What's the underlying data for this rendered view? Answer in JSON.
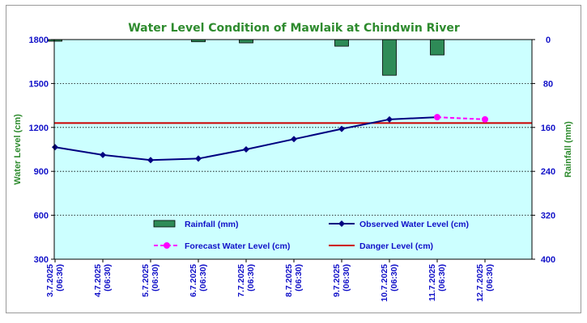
{
  "chart_data": {
    "type": "line",
    "title": "Water Level Condition of Mawlaik at Chindwin River",
    "y_left_label": "Water Level (cm)",
    "y_right_label": "Rainfall (mm)",
    "y_left_range": [
      300,
      1800
    ],
    "y_left_ticks": [
      "300",
      "600",
      "900",
      "1200",
      "1500",
      "1800"
    ],
    "y_right_range": [
      0,
      400
    ],
    "y_right_inverted": true,
    "y_right_ticks": [
      "0",
      "80",
      "160",
      "240",
      "320",
      "400"
    ],
    "grid": true,
    "plot_background": "#ccffff",
    "categories": [
      [
        "3.7.2025",
        "(06:30)"
      ],
      [
        "4.7.2025",
        "(06:30)"
      ],
      [
        "5.7.2025",
        "(06:30)"
      ],
      [
        "6.7.2025",
        "(06:30)"
      ],
      [
        "7.7.2025",
        "(06:30)"
      ],
      [
        "8.7.2025",
        "(06:30)"
      ],
      [
        "9.7.2025",
        "(06:30)"
      ],
      [
        "10.7.2025",
        "(06:30)"
      ],
      [
        "11.7.2025",
        "(06:30)"
      ],
      [
        "12.7.2025",
        "(06:30)"
      ]
    ],
    "series": [
      {
        "name": "Rainfall (mm)",
        "kind": "bar",
        "axis": "right",
        "color": "#2e8b57",
        "values": [
          3,
          0,
          0,
          4,
          6,
          0,
          12,
          65,
          28,
          0
        ]
      },
      {
        "name": "Observed Water Level (cm)",
        "kind": "line",
        "axis": "left",
        "color": "#000080",
        "marker": "diamond",
        "values": [
          1065,
          1012,
          977,
          987,
          1050,
          1120,
          1190,
          1255,
          1270,
          null
        ]
      },
      {
        "name": "Forecast Water Level (cm)",
        "kind": "line-dashed",
        "axis": "left",
        "color": "#ff00ff",
        "marker": "circle",
        "values": [
          null,
          null,
          null,
          null,
          null,
          null,
          null,
          null,
          1270,
          1255
        ]
      },
      {
        "name": "Danger Level (cm)",
        "kind": "hline",
        "axis": "left",
        "color": "#cc0000",
        "value": 1230
      }
    ],
    "legend_position": "inside-bottom"
  }
}
